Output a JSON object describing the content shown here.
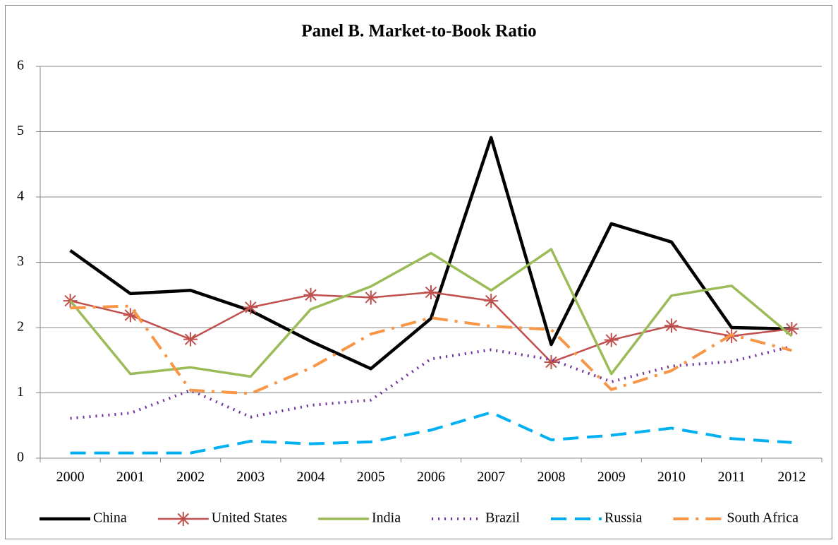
{
  "chart_data": {
    "type": "line",
    "title": "Panel B. Market-to-Book Ratio",
    "categories": [
      "2000",
      "2001",
      "2002",
      "2003",
      "2004",
      "2005",
      "2006",
      "2007",
      "2008",
      "2009",
      "2010",
      "2011",
      "2012"
    ],
    "ylim": [
      0,
      6
    ],
    "yticks": [
      0,
      1,
      2,
      3,
      4,
      5,
      6
    ],
    "grid": true,
    "legend": "bottom",
    "series": [
      {
        "name": "China",
        "color": "#000000",
        "dash": "solid",
        "values": [
          3.18,
          2.52,
          2.57,
          2.26,
          1.79,
          1.37,
          2.14,
          4.91,
          1.74,
          3.59,
          3.31,
          2.0,
          1.98
        ]
      },
      {
        "name": "United States",
        "color": "#c0504d",
        "dash": "solid",
        "marker": "asterisk",
        "values": [
          2.41,
          2.19,
          1.82,
          2.31,
          2.5,
          2.46,
          2.54,
          2.41,
          1.47,
          1.81,
          2.03,
          1.87,
          1.98
        ]
      },
      {
        "name": "India",
        "color": "#9bbb59",
        "dash": "solid",
        "values": [
          2.41,
          1.29,
          1.39,
          1.25,
          2.28,
          2.63,
          3.14,
          2.57,
          3.2,
          1.29,
          2.49,
          2.64,
          1.87
        ]
      },
      {
        "name": "Brazil",
        "color": "#7030a0",
        "dash": "dotted",
        "values": [
          0.61,
          0.69,
          1.04,
          0.63,
          0.81,
          0.89,
          1.52,
          1.66,
          1.51,
          1.17,
          1.41,
          1.48,
          1.71
        ]
      },
      {
        "name": "Russia",
        "color": "#00b0f0",
        "dash": "dashed",
        "values": [
          0.08,
          0.08,
          0.08,
          0.26,
          0.22,
          0.25,
          0.43,
          0.7,
          0.28,
          0.35,
          0.46,
          0.3,
          0.24
        ]
      },
      {
        "name": "South Africa",
        "color": "#f79646",
        "dash": "dashdot",
        "values": [
          2.3,
          2.33,
          1.04,
          0.99,
          1.38,
          1.9,
          2.15,
          2.02,
          1.97,
          1.05,
          1.34,
          1.89,
          1.65
        ]
      }
    ]
  }
}
